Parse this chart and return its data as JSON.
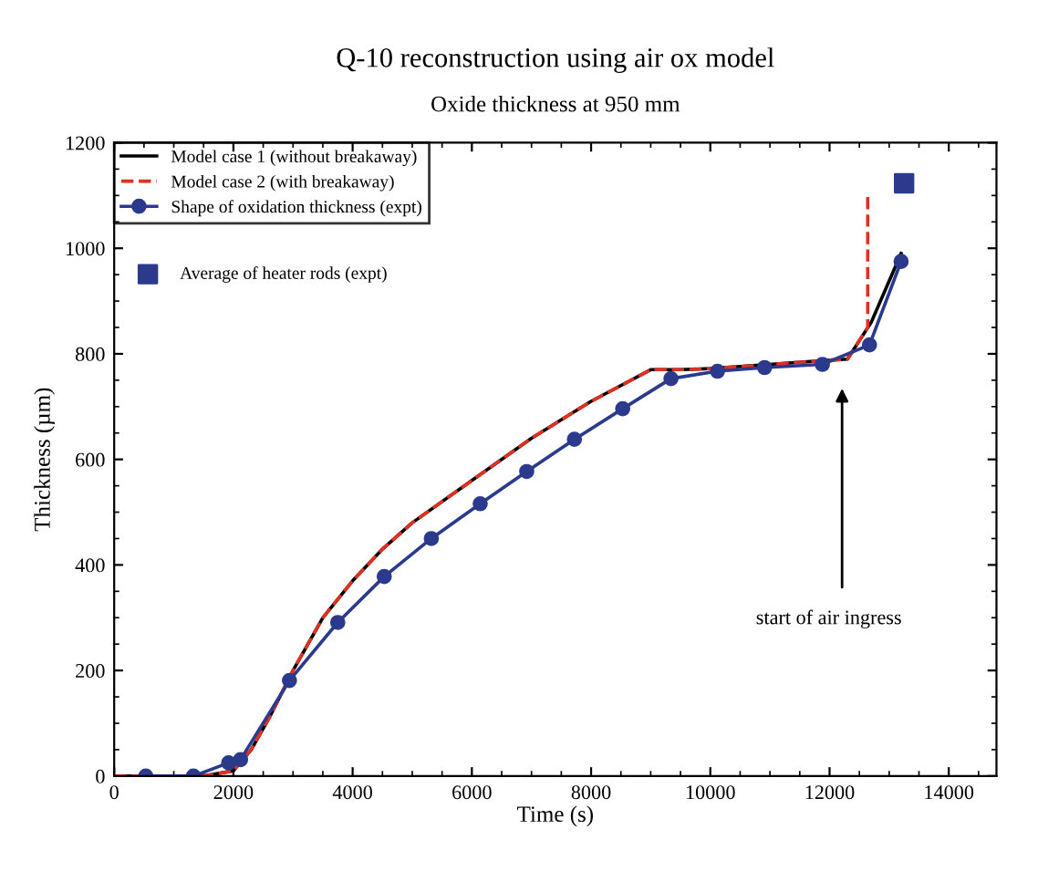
{
  "chart_data": {
    "type": "line",
    "title": "Q-10 reconstruction using air ox model",
    "subtitle": "Oxide thickness at 950 mm",
    "xlabel": "Time (s)",
    "ylabel": "Thickness (µm)",
    "xlim": [
      0,
      14800
    ],
    "ylim": [
      0,
      1200
    ],
    "xticks": [
      0,
      2000,
      4000,
      6000,
      8000,
      10000,
      12000,
      14000
    ],
    "yticks": [
      0,
      200,
      400,
      600,
      800,
      1000,
      1200
    ],
    "grid": false,
    "legend": "top left",
    "series": [
      {
        "name": "Model case 1 (without breakaway)",
        "color": "#000000",
        "line_style": "solid",
        "marker": "none",
        "x": [
          0,
          1500,
          2000,
          2300,
          2600,
          3000,
          3500,
          4000,
          4500,
          5000,
          6000,
          7000,
          8000,
          9000,
          9500,
          10000,
          11000,
          12000,
          12300,
          12700,
          13200
        ],
        "values": [
          0,
          0,
          10,
          50,
          110,
          200,
          300,
          370,
          430,
          480,
          560,
          640,
          710,
          770,
          770,
          772,
          780,
          788,
          790,
          860,
          990
        ]
      },
      {
        "name": "Model case 2 (with breakaway)",
        "color": "#e03020",
        "line_style": "dashed",
        "marker": "none",
        "x": [
          0,
          1500,
          2000,
          2300,
          2600,
          3000,
          3500,
          4000,
          4500,
          5000,
          6000,
          7000,
          8000,
          9000,
          9500,
          10000,
          11000,
          12000,
          12300,
          12640,
          12640
        ],
        "values": [
          0,
          0,
          10,
          50,
          110,
          200,
          300,
          370,
          430,
          480,
          560,
          640,
          710,
          770,
          770,
          772,
          780,
          788,
          790,
          850,
          1105
        ]
      },
      {
        "name": "Shape of oxidation thickness (expt)",
        "color": "#2b3a8c",
        "line_style": "solid",
        "marker": "circle",
        "x": [
          530,
          1330,
          1920,
          2120,
          2940,
          3750,
          4530,
          5320,
          6140,
          6920,
          7720,
          8530,
          9340,
          10120,
          10910,
          11880,
          12670,
          13200
        ],
        "values": [
          0,
          0,
          25,
          31,
          181,
          291,
          378,
          450,
          516,
          577,
          638,
          696,
          753,
          767,
          774,
          780,
          817,
          975
        ]
      },
      {
        "name": "Average of heater rods (expt)",
        "type": "scatter",
        "color": "#2b3a8c",
        "marker": "square",
        "x": [
          13250
        ],
        "values": [
          1123
        ]
      }
    ],
    "annotations": [
      "start of air ingress"
    ]
  }
}
